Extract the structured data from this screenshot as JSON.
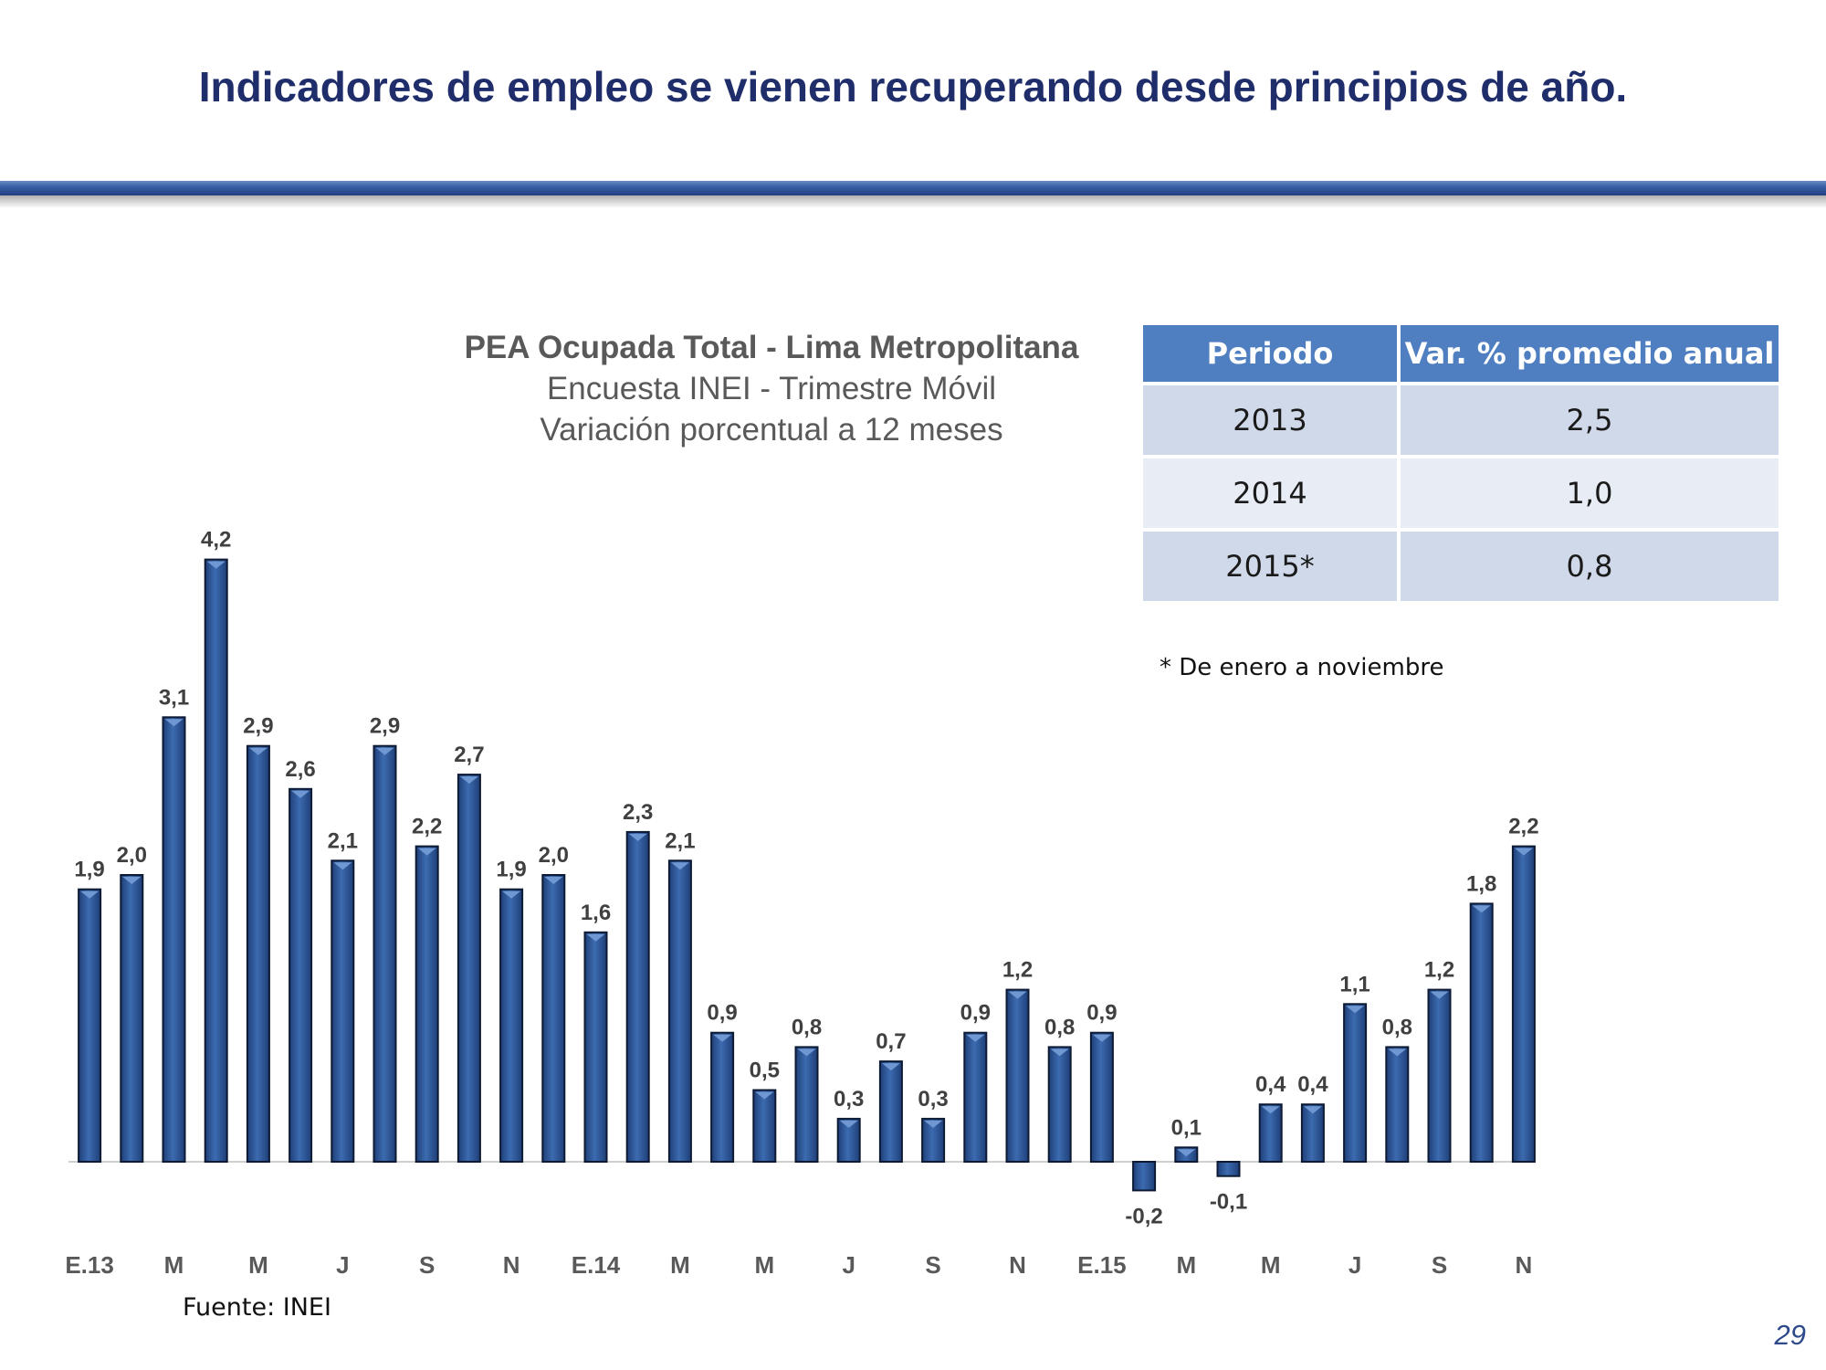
{
  "slide": {
    "title": "Indicadores de empleo se vienen recuperando desde principios de año.",
    "page_number": "29",
    "source": "Fuente: INEI"
  },
  "chart_heading": {
    "line1": "PEA Ocupada Total - Lima Metropolitana",
    "line2": "Encuesta INEI - Trimestre Móvil",
    "line3": "Variación porcentual a 12 meses"
  },
  "summary_table": {
    "headers": [
      "Periodo",
      "Var. % promedio anual"
    ],
    "rows": [
      [
        "2013",
        "2,5"
      ],
      [
        "2014",
        "1,0"
      ],
      [
        "2015*",
        "0,8"
      ]
    ],
    "footnote": "* De enero a noviembre"
  },
  "colors": {
    "bar": "#3c6bb0",
    "bar_dark": "#1f3f78",
    "title": "#1f2d6b"
  },
  "chart_data": {
    "type": "bar",
    "title": "PEA Ocupada Total - Lima Metropolitana",
    "xlabel": "",
    "ylabel": "",
    "grid": false,
    "ylim": [
      -0.4,
      4.4
    ],
    "values": [
      1.9,
      2.0,
      3.1,
      4.2,
      2.9,
      2.6,
      2.1,
      2.9,
      2.2,
      2.7,
      1.9,
      2.0,
      1.6,
      2.3,
      2.1,
      0.9,
      0.5,
      0.8,
      0.3,
      0.7,
      0.3,
      0.9,
      1.2,
      0.8,
      0.9,
      -0.2,
      0.1,
      -0.1,
      0.4,
      0.4,
      1.1,
      0.8,
      1.2,
      1.8,
      2.2
    ],
    "value_labels": [
      "1,9",
      "2,0",
      "3,1",
      "4,2",
      "2,9",
      "2,6",
      "2,1",
      "2,9",
      "2,2",
      "2,7",
      "1,9",
      "2,0",
      "1,6",
      "2,3",
      "2,1",
      "0,9",
      "0,5",
      "0,8",
      "0,3",
      "0,7",
      "0,3",
      "0,9",
      "1,2",
      "0,8",
      "0,9",
      "-0,2",
      "0,1",
      "-0,1",
      "0,4",
      "0,4",
      "1,1",
      "0,8",
      "1,2",
      "1,8",
      "2,2"
    ],
    "tick_labels": [
      "E.13",
      "M",
      "M",
      "J",
      "S",
      "N",
      "E.14",
      "M",
      "M",
      "J",
      "S",
      "N",
      "E.15",
      "M",
      "M",
      "J",
      "S",
      "N"
    ],
    "tick_every": 2
  }
}
